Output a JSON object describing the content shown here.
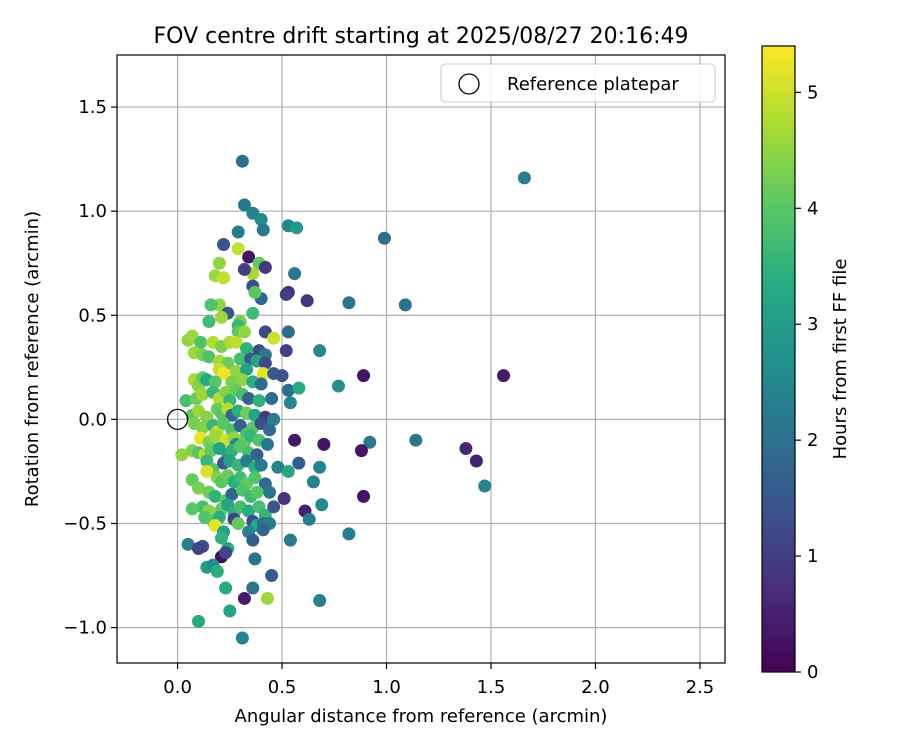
{
  "chart_data": {
    "type": "scatter",
    "title": "FOV centre drift starting at 2025/08/27 20:16:49",
    "xlabel": "Angular distance from reference (arcmin)",
    "ylabel": "Rotation from reference (arcmin)",
    "xlim": [
      -0.29,
      2.62
    ],
    "ylim": [
      -1.17,
      1.75
    ],
    "x_ticks": [
      0.0,
      0.5,
      1.0,
      1.5,
      2.0,
      2.5
    ],
    "x_tick_labels": [
      "0.0",
      "0.5",
      "1.0",
      "1.5",
      "2.0",
      "2.5"
    ],
    "y_ticks": [
      -1.0,
      -0.5,
      0.0,
      0.5,
      1.0,
      1.5
    ],
    "y_tick_labels": [
      "−1.0",
      "−0.5",
      "0.0",
      "0.5",
      "1.0",
      "1.5"
    ],
    "grid": true,
    "legend": {
      "position": "top-right",
      "entries": [
        "Reference platepar"
      ]
    },
    "reference_point": {
      "x": 0.0,
      "y": 0.0,
      "marker": "open-circle"
    },
    "colorbar": {
      "label": "Hours from first FF file",
      "colormap": "viridis",
      "range": [
        0,
        5.4
      ],
      "ticks": [
        0,
        1,
        2,
        3,
        4,
        5
      ],
      "tick_labels": [
        "0",
        "1",
        "2",
        "3",
        "4",
        "5"
      ]
    },
    "colormap_stops": [
      "#440154",
      "#472c7a",
      "#3b518b",
      "#2c718e",
      "#21908d",
      "#27ad81",
      "#5cc863",
      "#aadc32",
      "#fde725"
    ],
    "series": [
      {
        "points": [
          [
            1.66,
            1.16,
            2.3
          ],
          [
            0.31,
            1.24,
            2.0
          ],
          [
            0.32,
            1.03,
            2.2
          ],
          [
            0.36,
            0.99,
            2.4
          ],
          [
            0.4,
            0.96,
            2.6
          ],
          [
            0.53,
            0.93,
            2.5
          ],
          [
            0.57,
            0.92,
            2.9
          ],
          [
            0.41,
            0.91,
            2.2
          ],
          [
            0.29,
            0.9,
            2.3
          ],
          [
            0.99,
            0.87,
            2.0
          ],
          [
            0.22,
            0.84,
            1.4
          ],
          [
            0.29,
            0.82,
            4.9
          ],
          [
            0.34,
            0.78,
            0.3
          ],
          [
            0.39,
            0.75,
            4.1
          ],
          [
            0.36,
            0.7,
            4.7
          ],
          [
            0.2,
            0.75,
            4.5
          ],
          [
            0.42,
            0.73,
            0.9
          ],
          [
            0.18,
            0.69,
            4.6
          ],
          [
            0.22,
            0.68,
            4.9
          ],
          [
            0.32,
            0.72,
            1.0
          ],
          [
            0.56,
            0.7,
            2.2
          ],
          [
            0.36,
            0.64,
            1.3
          ],
          [
            0.4,
            0.58,
            1.8
          ],
          [
            0.37,
            0.61,
            4.0
          ],
          [
            0.53,
            0.61,
            0.7
          ],
          [
            0.52,
            0.6,
            1.0
          ],
          [
            0.62,
            0.57,
            0.8
          ],
          [
            0.82,
            0.56,
            2.1
          ],
          [
            1.09,
            0.55,
            2.1
          ],
          [
            0.2,
            0.55,
            4.5
          ],
          [
            0.16,
            0.55,
            3.9
          ],
          [
            0.36,
            0.51,
            3.7
          ],
          [
            0.24,
            0.51,
            1.5
          ],
          [
            0.21,
            0.49,
            4.6
          ],
          [
            0.15,
            0.47,
            3.7
          ],
          [
            0.3,
            0.47,
            4.3
          ],
          [
            0.29,
            0.45,
            3.6
          ],
          [
            0.29,
            0.42,
            4.1
          ],
          [
            0.32,
            0.42,
            4.5
          ],
          [
            0.42,
            0.42,
            1.2
          ],
          [
            0.53,
            0.42,
            1.9
          ],
          [
            0.46,
            0.39,
            5.0
          ],
          [
            0.05,
            0.38,
            4.5
          ],
          [
            0.07,
            0.4,
            4.6
          ],
          [
            0.11,
            0.37,
            3.9
          ],
          [
            0.17,
            0.37,
            4.8
          ],
          [
            0.21,
            0.35,
            4.3
          ],
          [
            0.25,
            0.37,
            4.7
          ],
          [
            0.28,
            0.37,
            4.9
          ],
          [
            0.33,
            0.34,
            3.5
          ],
          [
            0.39,
            0.33,
            1.3
          ],
          [
            0.42,
            0.31,
            2.2
          ],
          [
            0.52,
            0.33,
            1.1
          ],
          [
            0.68,
            0.33,
            2.5
          ],
          [
            0.08,
            0.32,
            4.6
          ],
          [
            0.12,
            0.31,
            4.3
          ],
          [
            0.15,
            0.3,
            3.9
          ],
          [
            0.2,
            0.28,
            4.7
          ],
          [
            0.24,
            0.27,
            4.2
          ],
          [
            0.3,
            0.29,
            3.8
          ],
          [
            0.35,
            0.29,
            1.6
          ],
          [
            0.38,
            0.28,
            3.2
          ],
          [
            0.42,
            0.27,
            1.2
          ],
          [
            0.2,
            0.24,
            4.9
          ],
          [
            0.22,
            0.22,
            5.3
          ],
          [
            0.28,
            0.23,
            4.5
          ],
          [
            0.33,
            0.24,
            3.1
          ],
          [
            0.41,
            0.22,
            5.2
          ],
          [
            0.46,
            0.22,
            1.6
          ],
          [
            0.04,
            0.09,
            3.8
          ],
          [
            0.08,
            0.19,
            4.7
          ],
          [
            0.1,
            0.16,
            4.4
          ],
          [
            0.12,
            0.2,
            4.1
          ],
          [
            0.14,
            0.19,
            3.3
          ],
          [
            0.18,
            0.18,
            4.0
          ],
          [
            0.26,
            0.18,
            4.3
          ],
          [
            0.31,
            0.19,
            4.5
          ],
          [
            0.36,
            0.18,
            3.4
          ],
          [
            0.4,
            0.17,
            1.9
          ],
          [
            0.5,
            0.21,
            1.4
          ],
          [
            0.89,
            0.21,
            0.3
          ],
          [
            1.56,
            0.21,
            0.4
          ],
          [
            0.09,
            0.1,
            4.2
          ],
          [
            0.12,
            0.12,
            4.6
          ],
          [
            0.17,
            0.13,
            3.6
          ],
          [
            0.2,
            0.1,
            4.8
          ],
          [
            0.23,
            0.13,
            4.4
          ],
          [
            0.25,
            0.09,
            3.6
          ],
          [
            0.28,
            0.14,
            4.1
          ],
          [
            0.31,
            0.12,
            3.8
          ],
          [
            0.34,
            0.1,
            1.7
          ],
          [
            0.39,
            0.09,
            3.5
          ],
          [
            0.45,
            0.1,
            2.0
          ],
          [
            0.53,
            0.14,
            2.0
          ],
          [
            0.58,
            0.15,
            3.3
          ],
          [
            0.77,
            0.16,
            2.7
          ],
          [
            0.54,
            0.08,
            2.5
          ],
          [
            0.07,
            0.02,
            4.0
          ],
          [
            0.1,
            0.04,
            4.6
          ],
          [
            0.14,
            0.01,
            4.4
          ],
          [
            0.19,
            0.05,
            4.2
          ],
          [
            0.21,
            0.03,
            4.0
          ],
          [
            0.24,
            0.05,
            4.8
          ],
          [
            0.26,
            0.02,
            1.8
          ],
          [
            0.29,
            0.04,
            3.4
          ],
          [
            0.33,
            0.03,
            4.2
          ],
          [
            0.37,
            0.02,
            3.2
          ],
          [
            0.42,
            0.01,
            0.9
          ],
          [
            0.46,
            0.0,
            2.3
          ],
          [
            0.08,
            -0.02,
            4.3
          ],
          [
            0.12,
            -0.04,
            4.4
          ],
          [
            0.17,
            -0.03,
            3.6
          ],
          [
            0.19,
            -0.06,
            4.9
          ],
          [
            0.22,
            -0.02,
            4.0
          ],
          [
            0.26,
            -0.05,
            3.9
          ],
          [
            0.3,
            -0.03,
            1.7
          ],
          [
            0.33,
            -0.07,
            3.8
          ],
          [
            0.36,
            -0.04,
            4.0
          ],
          [
            0.4,
            -0.02,
            1.3
          ],
          [
            0.44,
            -0.05,
            1.9
          ],
          [
            0.11,
            -0.09,
            5.2
          ],
          [
            0.15,
            -0.11,
            4.3
          ],
          [
            0.18,
            -0.08,
            4.6
          ],
          [
            0.23,
            -0.1,
            5.0
          ],
          [
            0.27,
            -0.09,
            4.5
          ],
          [
            0.28,
            -0.12,
            2.6
          ],
          [
            0.32,
            -0.11,
            4.1
          ],
          [
            0.35,
            -0.08,
            3.6
          ],
          [
            0.39,
            -0.1,
            3.9
          ],
          [
            0.43,
            -0.12,
            2.2
          ],
          [
            0.56,
            -0.1,
            0.4
          ],
          [
            0.7,
            -0.12,
            0.3
          ],
          [
            0.92,
            -0.11,
            2.2
          ],
          [
            1.14,
            -0.1,
            2.2
          ],
          [
            1.38,
            -0.14,
            0.6
          ],
          [
            0.88,
            -0.15,
            0.3
          ],
          [
            1.43,
            -0.2,
            0.5
          ],
          [
            0.02,
            -0.17,
            4.5
          ],
          [
            0.07,
            -0.15,
            4.4
          ],
          [
            0.1,
            -0.16,
            4.0
          ],
          [
            0.13,
            -0.17,
            4.8
          ],
          [
            0.16,
            -0.15,
            4.1
          ],
          [
            0.2,
            -0.14,
            3.2
          ],
          [
            0.24,
            -0.18,
            3.1
          ],
          [
            0.26,
            -0.15,
            3.5
          ],
          [
            0.3,
            -0.13,
            4.0
          ],
          [
            0.34,
            -0.16,
            3.8
          ],
          [
            0.38,
            -0.17,
            1.7
          ],
          [
            0.14,
            -0.2,
            3.6
          ],
          [
            0.17,
            -0.24,
            4.0
          ],
          [
            0.22,
            -0.21,
            1.5
          ],
          [
            0.25,
            -0.2,
            3.1
          ],
          [
            0.29,
            -0.22,
            3.6
          ],
          [
            0.33,
            -0.2,
            2.3
          ],
          [
            0.37,
            -0.23,
            3.4
          ],
          [
            0.4,
            -0.22,
            2.2
          ],
          [
            0.48,
            -0.23,
            2.4
          ],
          [
            0.53,
            -0.25,
            3.2
          ],
          [
            0.58,
            -0.21,
            1.6
          ],
          [
            0.68,
            -0.23,
            2.4
          ],
          [
            0.14,
            -0.25,
            5.1
          ],
          [
            0.19,
            -0.28,
            4.4
          ],
          [
            0.21,
            -0.3,
            4.0
          ],
          [
            0.24,
            -0.27,
            4.2
          ],
          [
            0.27,
            -0.3,
            3.4
          ],
          [
            0.3,
            -0.28,
            3.7
          ],
          [
            0.33,
            -0.31,
            4.1
          ],
          [
            0.37,
            -0.28,
            3.9
          ],
          [
            0.42,
            -0.31,
            1.9
          ],
          [
            0.65,
            -0.3,
            2.4
          ],
          [
            1.47,
            -0.32,
            2.4
          ],
          [
            0.07,
            -0.29,
            4.1
          ],
          [
            0.1,
            -0.33,
            4.3
          ],
          [
            0.15,
            -0.35,
            4.2
          ],
          [
            0.18,
            -0.37,
            3.5
          ],
          [
            0.23,
            -0.39,
            4.0
          ],
          [
            0.26,
            -0.36,
            1.8
          ],
          [
            0.31,
            -0.34,
            3.9
          ],
          [
            0.35,
            -0.37,
            3.7
          ],
          [
            0.38,
            -0.35,
            4.0
          ],
          [
            0.44,
            -0.35,
            2.2
          ],
          [
            0.51,
            -0.38,
            0.8
          ],
          [
            0.69,
            -0.41,
            2.6
          ],
          [
            0.89,
            -0.37,
            0.3
          ],
          [
            0.12,
            -0.42,
            3.8
          ],
          [
            0.15,
            -0.44,
            4.4
          ],
          [
            0.21,
            -0.43,
            4.1
          ],
          [
            0.24,
            -0.41,
            3.2
          ],
          [
            0.27,
            -0.45,
            3.5
          ],
          [
            0.3,
            -0.42,
            3.8
          ],
          [
            0.34,
            -0.44,
            3.4
          ],
          [
            0.39,
            -0.42,
            3.8
          ],
          [
            0.42,
            -0.46,
            3.6
          ],
          [
            0.46,
            -0.42,
            1.5
          ],
          [
            0.61,
            -0.44,
            0.5
          ],
          [
            0.63,
            -0.48,
            2.3
          ],
          [
            0.07,
            -0.43,
            4.0
          ],
          [
            0.13,
            -0.47,
            3.9
          ],
          [
            0.17,
            -0.49,
            4.0
          ],
          [
            0.2,
            -0.47,
            3.4
          ],
          [
            0.27,
            -0.48,
            1.1
          ],
          [
            0.29,
            -0.5,
            4.1
          ],
          [
            0.36,
            -0.49,
            1.3
          ],
          [
            0.38,
            -0.51,
            3.3
          ],
          [
            0.41,
            -0.5,
            2.1
          ],
          [
            0.44,
            -0.5,
            2.3
          ],
          [
            0.18,
            -0.51,
            5.2
          ],
          [
            0.22,
            -0.54,
            3.2
          ],
          [
            0.34,
            -0.54,
            2.4
          ],
          [
            0.41,
            -0.53,
            1.8
          ],
          [
            0.82,
            -0.55,
            2.3
          ],
          [
            0.54,
            -0.58,
            2.3
          ],
          [
            0.36,
            -0.58,
            1.6
          ],
          [
            0.21,
            -0.57,
            3.5
          ],
          [
            0.24,
            -0.62,
            3.3
          ],
          [
            0.12,
            -0.61,
            1.3
          ],
          [
            0.05,
            -0.6,
            2.3
          ],
          [
            0.1,
            -0.62,
            1.1
          ],
          [
            0.21,
            -0.66,
            0.2
          ],
          [
            0.23,
            -0.64,
            1.2
          ],
          [
            0.37,
            -0.67,
            2.1
          ],
          [
            0.14,
            -0.71,
            3.0
          ],
          [
            0.17,
            -0.7,
            2.6
          ],
          [
            0.19,
            -0.73,
            3.4
          ],
          [
            0.45,
            -0.75,
            1.6
          ],
          [
            0.23,
            -0.81,
            3.3
          ],
          [
            0.36,
            -0.81,
            2.1
          ],
          [
            0.32,
            -0.86,
            0.4
          ],
          [
            0.43,
            -0.86,
            4.6
          ],
          [
            0.68,
            -0.87,
            2.3
          ],
          [
            0.25,
            -0.92,
            3.1
          ],
          [
            0.1,
            -0.97,
            3.3
          ],
          [
            0.31,
            -1.05,
            2.4
          ]
        ]
      }
    ]
  }
}
